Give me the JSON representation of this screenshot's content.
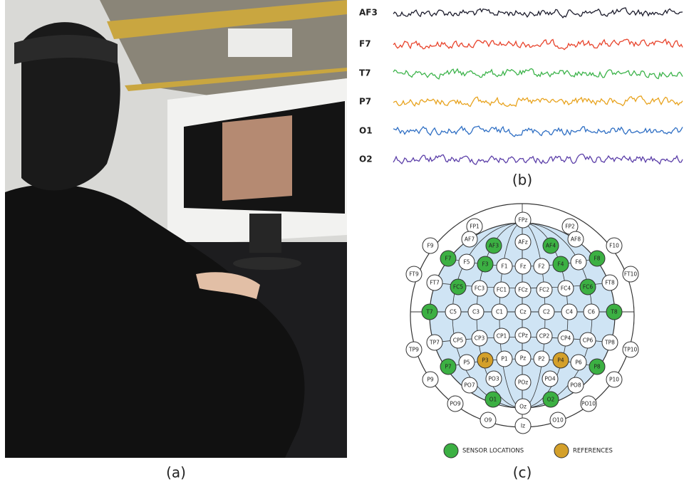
{
  "figure": {
    "panels": [
      {
        "label": "(a)"
      },
      {
        "label": "(b)"
      },
      {
        "label": "(c)"
      }
    ],
    "eeg": {
      "channels": [
        {
          "name": "AF3",
          "color": "#1c1c2c"
        },
        {
          "name": "F7",
          "color": "#e8432b"
        },
        {
          "name": "T7",
          "color": "#3cb34a"
        },
        {
          "name": "P7",
          "color": "#e8a31e"
        },
        {
          "name": "O1",
          "color": "#2f6fc4"
        },
        {
          "name": "O2",
          "color": "#5b3ea8"
        }
      ]
    },
    "electrode_map": {
      "electrodes": [
        {
          "label": "FPz",
          "color": "#ffffff"
        },
        {
          "label": "FP1",
          "color": "#ffffff"
        },
        {
          "label": "FP2",
          "color": "#ffffff"
        },
        {
          "label": "AF7",
          "color": "#ffffff"
        },
        {
          "label": "AFz",
          "color": "#ffffff"
        },
        {
          "label": "AF8",
          "color": "#ffffff"
        },
        {
          "label": "AF3",
          "color": "#3cb043"
        },
        {
          "label": "AF4",
          "color": "#3cb043"
        },
        {
          "label": "F9",
          "color": "#ffffff"
        },
        {
          "label": "F10",
          "color": "#ffffff"
        },
        {
          "label": "F7",
          "color": "#3cb043"
        },
        {
          "label": "F5",
          "color": "#ffffff"
        },
        {
          "label": "F3",
          "color": "#3cb043"
        },
        {
          "label": "F1",
          "color": "#ffffff"
        },
        {
          "label": "Fz",
          "color": "#ffffff"
        },
        {
          "label": "F2",
          "color": "#ffffff"
        },
        {
          "label": "F4",
          "color": "#3cb043"
        },
        {
          "label": "F6",
          "color": "#ffffff"
        },
        {
          "label": "F8",
          "color": "#3cb043"
        },
        {
          "label": "FT9",
          "color": "#ffffff"
        },
        {
          "label": "FT10",
          "color": "#ffffff"
        },
        {
          "label": "FT7",
          "color": "#ffffff"
        },
        {
          "label": "FC5",
          "color": "#3cb043"
        },
        {
          "label": "FC3",
          "color": "#ffffff"
        },
        {
          "label": "FC1",
          "color": "#ffffff"
        },
        {
          "label": "FCz",
          "color": "#ffffff"
        },
        {
          "label": "FC2",
          "color": "#ffffff"
        },
        {
          "label": "FC4",
          "color": "#ffffff"
        },
        {
          "label": "FC6",
          "color": "#3cb043"
        },
        {
          "label": "FT8",
          "color": "#ffffff"
        },
        {
          "label": "T7",
          "color": "#3cb043"
        },
        {
          "label": "C5",
          "color": "#ffffff"
        },
        {
          "label": "C3",
          "color": "#ffffff"
        },
        {
          "label": "C1",
          "color": "#ffffff"
        },
        {
          "label": "Cz",
          "color": "#ffffff"
        },
        {
          "label": "C2",
          "color": "#ffffff"
        },
        {
          "label": "C4",
          "color": "#ffffff"
        },
        {
          "label": "C6",
          "color": "#ffffff"
        },
        {
          "label": "T8",
          "color": "#3cb043"
        },
        {
          "label": "TP7",
          "color": "#ffffff"
        },
        {
          "label": "CP5",
          "color": "#ffffff"
        },
        {
          "label": "CP3",
          "color": "#ffffff"
        },
        {
          "label": "CP1",
          "color": "#ffffff"
        },
        {
          "label": "CPz",
          "color": "#ffffff"
        },
        {
          "label": "CP2",
          "color": "#ffffff"
        },
        {
          "label": "CP4",
          "color": "#ffffff"
        },
        {
          "label": "CP6",
          "color": "#ffffff"
        },
        {
          "label": "TP8",
          "color": "#ffffff"
        },
        {
          "label": "TP9",
          "color": "#ffffff"
        },
        {
          "label": "TP10",
          "color": "#ffffff"
        },
        {
          "label": "P7",
          "color": "#3cb043"
        },
        {
          "label": "P5",
          "color": "#ffffff"
        },
        {
          "label": "P3",
          "color": "#d4a02a"
        },
        {
          "label": "P1",
          "color": "#ffffff"
        },
        {
          "label": "Pz",
          "color": "#ffffff"
        },
        {
          "label": "P2",
          "color": "#ffffff"
        },
        {
          "label": "P4",
          "color": "#d4a02a"
        },
        {
          "label": "P6",
          "color": "#ffffff"
        },
        {
          "label": "P8",
          "color": "#3cb043"
        },
        {
          "label": "P9",
          "color": "#ffffff"
        },
        {
          "label": "P10",
          "color": "#ffffff"
        },
        {
          "label": "PO7",
          "color": "#ffffff"
        },
        {
          "label": "PO3",
          "color": "#ffffff"
        },
        {
          "label": "POz",
          "color": "#ffffff"
        },
        {
          "label": "PO4",
          "color": "#ffffff"
        },
        {
          "label": "PO8",
          "color": "#ffffff"
        },
        {
          "label": "PO9",
          "color": "#ffffff"
        },
        {
          "label": "O1",
          "color": "#3cb043"
        },
        {
          "label": "O2",
          "color": "#3cb043"
        },
        {
          "label": "PO10",
          "color": "#ffffff"
        },
        {
          "label": "Oz",
          "color": "#ffffff"
        },
        {
          "label": "O9",
          "color": "#ffffff"
        },
        {
          "label": "O10",
          "color": "#ffffff"
        },
        {
          "label": "Iz",
          "color": "#ffffff"
        }
      ],
      "legend": [
        {
          "label": "SENSOR LOCATIONS",
          "color": "#3cb043"
        },
        {
          "label": "REFERENCES",
          "color": "#d4a02a"
        }
      ]
    }
  }
}
